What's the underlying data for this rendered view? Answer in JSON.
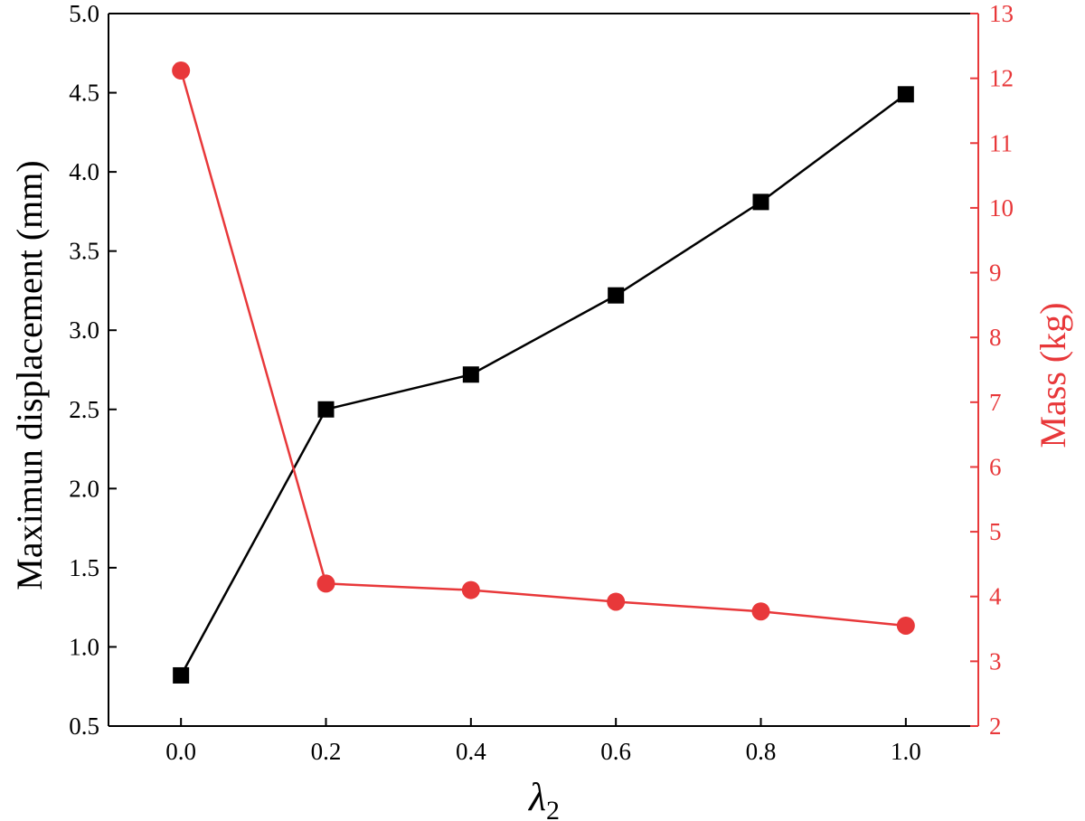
{
  "chart_data": {
    "type": "line",
    "x": [
      0.0,
      0.2,
      0.4,
      0.6,
      0.8,
      1.0
    ],
    "xticks": [
      "0.0",
      "0.2",
      "0.4",
      "0.6",
      "0.8",
      "1.0"
    ],
    "xlim": [
      -0.1,
      1.1
    ],
    "xlabel": {
      "symbol": "λ",
      "subscript": "2"
    },
    "ylabel_left": "Maximun displacement (mm)",
    "ylabel_right": "Mass (kg)",
    "ylim_left": [
      0.5,
      5.0
    ],
    "ylim_right": [
      2,
      13
    ],
    "yticks_left": [
      "0.5",
      "1.0",
      "1.5",
      "2.0",
      "2.5",
      "3.0",
      "3.5",
      "4.0",
      "4.5",
      "5.0"
    ],
    "yticks_right": [
      "2",
      "3",
      "4",
      "5",
      "6",
      "7",
      "8",
      "9",
      "10",
      "11",
      "12",
      "13"
    ],
    "grid": false,
    "series": [
      {
        "axis": "left",
        "marker": "square",
        "color": "#000000",
        "values": [
          0.82,
          2.5,
          2.72,
          3.22,
          3.81,
          4.49
        ]
      },
      {
        "axis": "right",
        "marker": "circle",
        "color": "#e8383a",
        "values": [
          12.12,
          4.2,
          4.1,
          3.92,
          3.77,
          3.55
        ]
      }
    ]
  }
}
